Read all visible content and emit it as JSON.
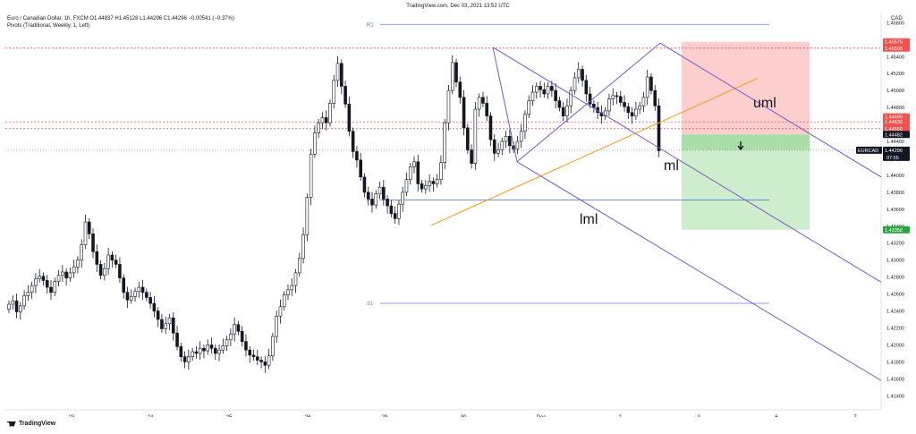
{
  "header": {
    "site_title": "TradingView.com, Dec 03, 2021 13:52 UTC"
  },
  "legend": {
    "line1": "Euro / Canadian Dollar, 1h, FXCM  O1.44837  H1.45128  L1.44296  C1.44296  −0.00541 (−0.37%)",
    "line2": "Pivots (Traditional, Weekly, 1, Left)"
  },
  "footer": {
    "brand": "TradingView"
  },
  "colors": {
    "up": "#131722",
    "down": "#131722",
    "pitchfork": "#7e57c2",
    "pivot": "#5b7fd1",
    "trend": "#f7a128",
    "level_red": "#ef5350",
    "target_green": "#26a641",
    "stop_zone": "#fcc6c6",
    "profit_zone": "#c8ebc8",
    "profit_zone_top": "#a5dba5"
  },
  "chart_data": {
    "type": "candlestick",
    "symbol": "EURCAD",
    "interval": "1h",
    "y_axis_unit": "CAD",
    "ylim": [
      1.4134,
      1.4592
    ],
    "y_ticks": [
      "1.45800",
      "1.45400",
      "1.45200",
      "1.45000",
      "1.44800",
      "1.44600",
      "1.44400",
      "1.44200",
      "1.44000",
      "1.43800",
      "1.43600",
      "1.43400",
      "1.43200",
      "1.43000",
      "1.42800",
      "1.42600",
      "1.42400",
      "1.42200",
      "1.42000",
      "1.41800",
      "1.41600",
      "1.41400"
    ],
    "x_labels": [
      "23",
      "24",
      "25",
      "26",
      "29",
      "30",
      "Dec",
      "2",
      "3",
      "6",
      "7"
    ],
    "price_badges": [
      {
        "label": "1.45575",
        "price": 1.45575,
        "color": "#ef5350"
      },
      {
        "label": "1.45500",
        "price": 1.455,
        "color": "#ef5350"
      },
      {
        "label": "1.44689",
        "price": 1.44689,
        "color": "#ef5350"
      },
      {
        "label": "1.44630",
        "price": 1.4463,
        "color": "#ef5350"
      },
      {
        "label": "1.44550",
        "price": 1.4455,
        "color": "#ef5350"
      },
      {
        "label": "1.44482",
        "price": 1.44482,
        "color": "#131722"
      },
      {
        "label": "1.43358",
        "price": 1.43358,
        "color": "#26a641"
      }
    ],
    "current": {
      "symbol": "EURCAD",
      "price": "1.44296",
      "countdown": "07:55"
    },
    "pivots": [
      {
        "name": "R1",
        "price": 1.4578
      },
      {
        "name": "P",
        "price": 1.4371
      },
      {
        "name": "S1",
        "price": 1.4249
      }
    ],
    "annotations": [
      "uml",
      "ml",
      "lml"
    ],
    "closes": [
      1.4248,
      1.4252,
      1.4239,
      1.4246,
      1.4258,
      1.4262,
      1.427,
      1.4278,
      1.4281,
      1.4276,
      1.4268,
      1.4262,
      1.4275,
      1.4282,
      1.4286,
      1.4279,
      1.4285,
      1.4292,
      1.43,
      1.4318,
      1.4345,
      1.4331,
      1.431,
      1.4295,
      1.4282,
      1.429,
      1.4306,
      1.43,
      1.4295,
      1.4279,
      1.4262,
      1.4253,
      1.4257,
      1.4263,
      1.4268,
      1.4262,
      1.4256,
      1.4249,
      1.424,
      1.423,
      1.4219,
      1.4225,
      1.4232,
      1.4214,
      1.4198,
      1.4186,
      1.418,
      1.4186,
      1.4192,
      1.419,
      1.4196,
      1.4193,
      1.42,
      1.4196,
      1.419,
      1.4194,
      1.4199,
      1.4206,
      1.4213,
      1.4224,
      1.4216,
      1.4204,
      1.4194,
      1.4188,
      1.4186,
      1.4182,
      1.418,
      1.4176,
      1.4187,
      1.421,
      1.4234,
      1.4245,
      1.4259,
      1.4265,
      1.427,
      1.4285,
      1.4302,
      1.433,
      1.4374,
      1.4425,
      1.445,
      1.4462,
      1.4468,
      1.4462,
      1.4485,
      1.4512,
      1.4532,
      1.4505,
      1.4484,
      1.4452,
      1.4428,
      1.4418,
      1.4398,
      1.438,
      1.4372,
      1.4365,
      1.4378,
      1.4386,
      1.4372,
      1.4364,
      1.4355,
      1.4349,
      1.4366,
      1.438,
      1.4395,
      1.441,
      1.4416,
      1.439,
      1.4384,
      1.4388,
      1.4393,
      1.439,
      1.4395,
      1.4415,
      1.4462,
      1.45,
      1.4533,
      1.451,
      1.4492,
      1.4456,
      1.443,
      1.4414,
      1.4478,
      1.4492,
      1.4485,
      1.447,
      1.4442,
      1.4426,
      1.443,
      1.444,
      1.4446,
      1.4435,
      1.4431,
      1.444,
      1.4452,
      1.4472,
      1.4488,
      1.4498,
      1.4505,
      1.4501,
      1.4496,
      1.4505,
      1.45,
      1.4488,
      1.448,
      1.447,
      1.4482,
      1.45,
      1.4515,
      1.4525,
      1.4512,
      1.4496,
      1.4484,
      1.448,
      1.4474,
      1.447,
      1.4476,
      1.449,
      1.4494,
      1.4493,
      1.4486,
      1.4481,
      1.4474,
      1.447,
      1.4478,
      1.4482,
      1.4492,
      1.4516,
      1.45,
      1.4482,
      1.4429
    ],
    "trend_line": [
      [
        20,
        "start",
        1.4341
      ],
      [
        84,
        "end",
        1.4478
      ]
    ],
    "pitchfork": {
      "pivot_a": [
        67,
        1.4416
      ],
      "pivot_b": [
        33,
        1.4551
      ],
      "pivot_c": [
        96,
        1.4556
      ],
      "upper_line": [
        [
          33,
          1.4551
        ],
        [
          148,
          1.4387
        ]
      ],
      "median_line": [
        [
          96,
          1.4556
        ],
        [
          171,
          1.4378
        ]
      ],
      "lower_line": [
        [
          67,
          1.4416
        ],
        [
          191,
          1.4234
        ]
      ],
      "median_extended": [
        [
          118,
          1.451
        ],
        [
          191,
          1.4265
        ]
      ]
    },
    "position": {
      "entry": 1.44482,
      "stop_loss": 1.45575,
      "take_profit": 1.43358
    }
  }
}
